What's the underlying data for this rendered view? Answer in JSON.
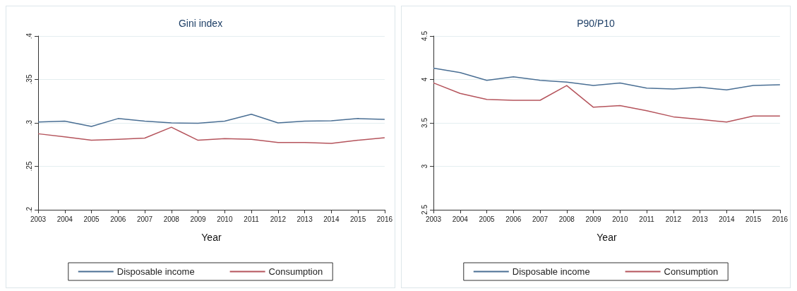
{
  "chart_data": [
    {
      "type": "line",
      "title": "Gini index",
      "xlabel": "Year",
      "categories": [
        "2003",
        "2004",
        "2005",
        "2006",
        "2007",
        "2008",
        "2009",
        "2010",
        "2011",
        "2012",
        "2013",
        "2014",
        "2015",
        "2016"
      ],
      "series": [
        {
          "name": "Disposable income",
          "color": "#4a6f94",
          "values": [
            0.301,
            0.302,
            0.296,
            0.305,
            0.302,
            0.3,
            0.2995,
            0.302,
            0.31,
            0.3,
            0.302,
            0.3025,
            0.305,
            0.304
          ]
        },
        {
          "name": "Consumption",
          "color": "#b5545c",
          "values": [
            0.2875,
            0.284,
            0.28,
            0.281,
            0.2825,
            0.295,
            0.28,
            0.282,
            0.281,
            0.2775,
            0.2775,
            0.2765,
            0.28,
            0.283
          ]
        }
      ],
      "ylim": [
        0.2,
        0.4
      ],
      "yticks": [
        {
          "value": 0.2,
          "label": ".2"
        },
        {
          "value": 0.25,
          "label": ".25"
        },
        {
          "value": 0.3,
          "label": ".3"
        },
        {
          "value": 0.35,
          "label": ".35"
        },
        {
          "value": 0.4,
          "label": ".4"
        }
      ],
      "grid": "y",
      "legend": "bottom",
      "marker": "none",
      "line_style": "solid"
    },
    {
      "type": "line",
      "title": "P90/P10",
      "xlabel": "Year",
      "categories": [
        "2003",
        "2004",
        "2005",
        "2006",
        "2007",
        "2008",
        "2009",
        "2010",
        "2011",
        "2012",
        "2013",
        "2014",
        "2015",
        "2016"
      ],
      "series": [
        {
          "name": "Disposable income",
          "color": "#4a6f94",
          "values": [
            4.13,
            4.08,
            3.99,
            4.03,
            3.99,
            3.97,
            3.93,
            3.96,
            3.9,
            3.89,
            3.91,
            3.88,
            3.93,
            3.94
          ]
        },
        {
          "name": "Consumption",
          "color": "#b5545c",
          "values": [
            3.96,
            3.84,
            3.77,
            3.76,
            3.76,
            3.93,
            3.68,
            3.7,
            3.64,
            3.57,
            3.54,
            3.51,
            3.58,
            3.58
          ]
        }
      ],
      "ylim": [
        2.5,
        4.5
      ],
      "yticks": [
        2.5,
        3,
        3.5,
        4,
        4.5
      ],
      "grid": "y",
      "legend": "bottom",
      "marker": "none",
      "line_style": "solid"
    }
  ]
}
